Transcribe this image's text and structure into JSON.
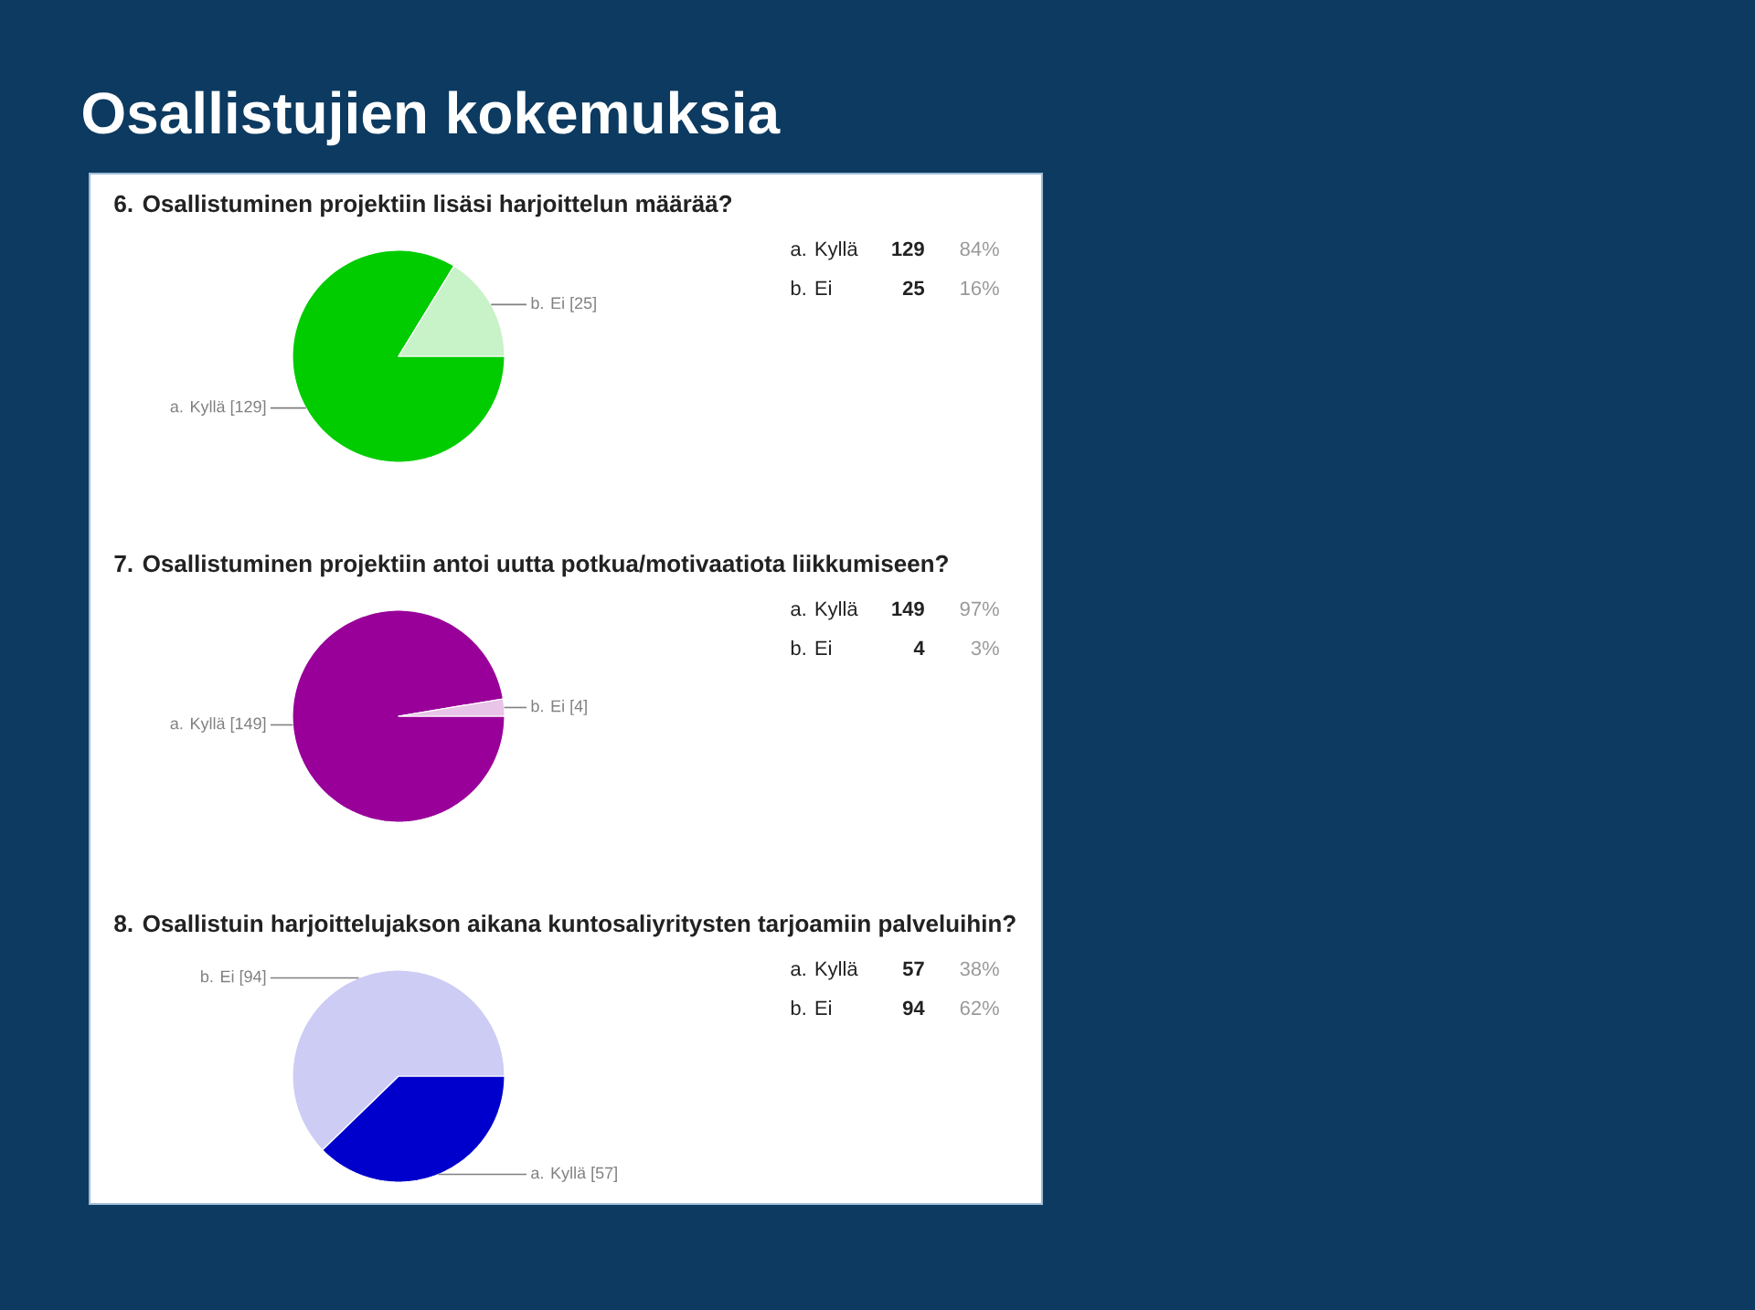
{
  "chart_data": [
    {
      "type": "other",
      "title": "Osallistujien kokemuksia"
    },
    {
      "type": "pie",
      "title": "6. Osallistuminen projektiin lisäsi harjoittelun määrää?",
      "categories": [
        "a. Kyllä",
        "b. Ei"
      ],
      "values": [
        129,
        25
      ],
      "colors": [
        "#00cc00",
        "#c8f2c8"
      ],
      "value_labels": [
        "[129]",
        "[25]"
      ],
      "annotations": [
        "129",
        "84%",
        "25",
        "16%"
      ]
    },
    {
      "type": "pie",
      "title": "7. Osallistuminen projektiin antoi uutta potkua/motivaatiota liikkumiseen?",
      "categories": [
        "a. Kyllä",
        "b. Ei"
      ],
      "values": [
        149,
        4
      ],
      "colors": [
        "#990099",
        "#e8c4e8"
      ],
      "value_labels": [
        "[149]",
        "[4]"
      ],
      "annotations": [
        "149",
        "97%",
        "4",
        "3%"
      ]
    },
    {
      "type": "pie",
      "title": "8. Osallistuin harjoittelujakson aikana kuntosaliyritysten tarjoamiin palveluihin?",
      "categories": [
        "a. Kyllä",
        "b. Ei"
      ],
      "values": [
        57,
        94
      ],
      "colors": [
        "#0000cc",
        "#ccccf5"
      ],
      "value_labels": [
        "[57]",
        "[94]"
      ],
      "annotations": [
        "57",
        "38%",
        "94",
        "62%"
      ]
    }
  ]
}
